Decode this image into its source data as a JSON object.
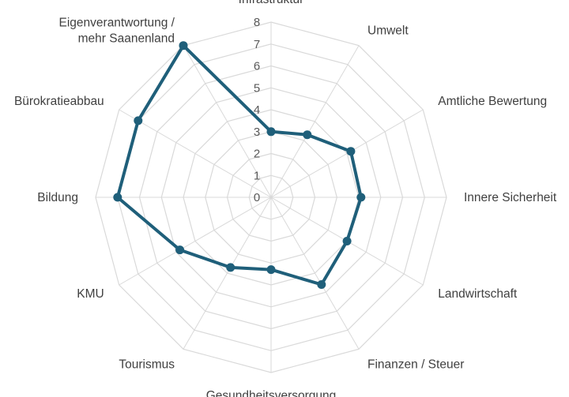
{
  "chart_data": {
    "type": "radar",
    "title": "",
    "categories": [
      "Infrastruktur",
      "Umwelt",
      "Amtliche Bewertung",
      "Innere Sicherheit",
      "Landwirtschaft",
      "Finanzen / Steuer",
      "Gesundheitsversorgung",
      "Tourismus",
      "KMU",
      "Bildung",
      "Bürokratieabbau",
      "Eigenverantwortung / mehr Saanenland"
    ],
    "category_lines": [
      [
        "Infrastruktur"
      ],
      [
        "Umwelt"
      ],
      [
        "Amtliche Bewertung"
      ],
      [
        "Innere Sicherheit"
      ],
      [
        "Landwirtschaft"
      ],
      [
        "Finanzen / Steuer"
      ],
      [
        "Gesundheitsversorgung"
      ],
      [
        "Tourismus"
      ],
      [
        "KMU"
      ],
      [
        "Bildung"
      ],
      [
        "Bürokratieabbau"
      ],
      [
        "Eigenverantwortung /",
        "mehr Saanenland"
      ]
    ],
    "series": [
      {
        "values": [
          3.0,
          3.3,
          4.2,
          4.1,
          4.0,
          4.6,
          3.3,
          3.7,
          4.8,
          7.0,
          7.0,
          8.0
        ],
        "color": "#1f5f7a"
      }
    ],
    "rlim": [
      0,
      8
    ],
    "ticks": [
      "0",
      "1",
      "2",
      "3",
      "4",
      "5",
      "6",
      "7",
      "8"
    ],
    "grid": true,
    "legend": "none"
  }
}
